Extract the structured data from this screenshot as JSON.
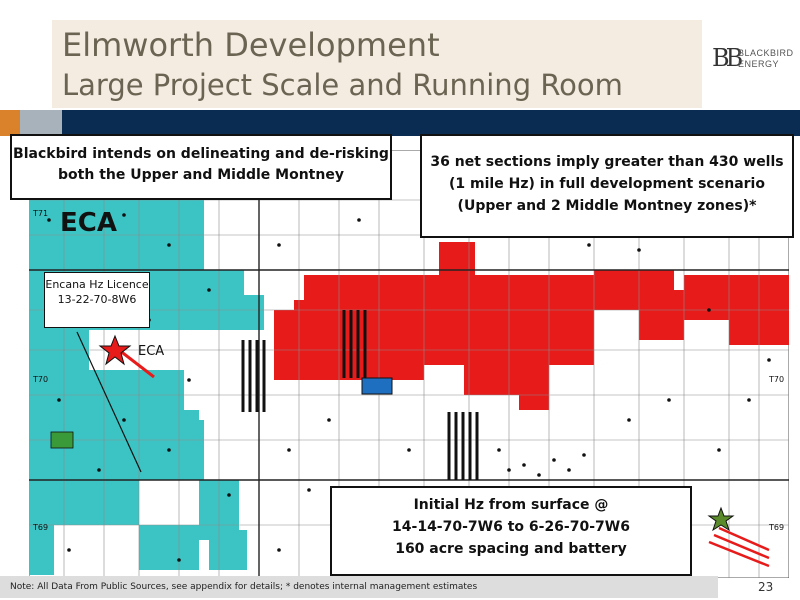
{
  "slide": {
    "title_line1": "Elmworth Development",
    "title_line2": "Large Project Scale and Running Room",
    "page_number": "23",
    "footnote": "Note: All Data From Public Sources, see appendix for details; * denotes internal management estimates"
  },
  "logo": {
    "mark": "BB",
    "text_line1": "BLACKBIRD",
    "text_line2": "ENERGY"
  },
  "colors": {
    "title_bg": "#f4ece1",
    "title_text": "#6b6453",
    "navy_bar": "#0b2c52",
    "orange_bar": "#d9822b",
    "gray_bar": "#a8b2bb",
    "eca_land": "#3cc4c4",
    "blackbird_land": "#e81b1b",
    "surface_pad": "#1f6fc0"
  },
  "callouts": {
    "left": "Blackbird intends on delineating and de-risking both the Upper and Middle Montney",
    "right": "36 net sections imply greater than 430 wells (1 mile Hz) in full development scenario (Upper and 2 Middle Montney zones)*",
    "bottom_line1": "Initial Hz from surface @",
    "bottom_line2": "14-14-70-7W6 to 6-26-70-7W6",
    "bottom_line3": "160 acre spacing and battery",
    "encana": "Encana Hz Licence 13-22-70-8W6"
  },
  "map_labels": {
    "eca_large": "ECA",
    "eca_small": "ECA",
    "township_t71": "T71",
    "township_t70_left": "T70",
    "township_t70_right": "T70",
    "township_t69_left": "T69",
    "township_t69_right": "T69"
  }
}
